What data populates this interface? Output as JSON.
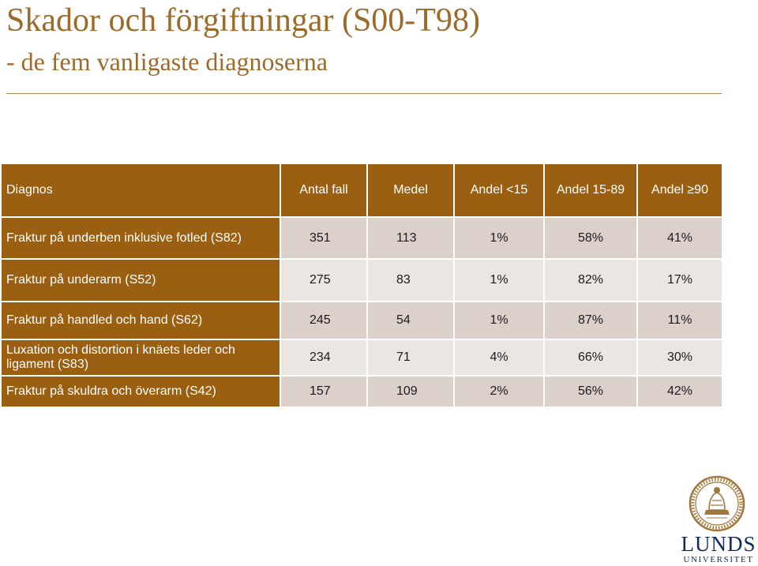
{
  "slide": {
    "title": "Skador och förgiftningar (S00-T98)",
    "subtitle": "- de fem vanligaste diagnoserna"
  },
  "table": {
    "headers": [
      "Diagnos",
      "Antal fall",
      "Medel",
      "Andel <15",
      "Andel 15-89",
      "Andel ≥90"
    ],
    "rows": [
      {
        "diagnos": "Fraktur på underben inklusive fotled (S82)",
        "antal": "351",
        "medel": "113",
        "andel_lt15": "1%",
        "andel_15_89": "58%",
        "andel_ge90": "41%"
      },
      {
        "diagnos": "Fraktur på underarm (S52)",
        "antal": "275",
        "medel": "83",
        "andel_lt15": "1%",
        "andel_15_89": "82%",
        "andel_ge90": "17%"
      },
      {
        "diagnos": "Fraktur på handled och hand (S62)",
        "antal": "245",
        "medel": "54",
        "andel_lt15": "1%",
        "andel_15_89": "87%",
        "andel_ge90": "11%"
      },
      {
        "diagnos": "Luxation och distortion i knäets leder och ligament (S83)",
        "antal": "234",
        "medel": "71",
        "andel_lt15": "4%",
        "andel_15_89": "66%",
        "andel_ge90": "30%"
      },
      {
        "diagnos": "Fraktur på skuldra och överarm (S42)",
        "antal": "157",
        "medel": "109",
        "andel_lt15": "2%",
        "andel_15_89": "56%",
        "andel_ge90": "42%"
      }
    ]
  },
  "logo": {
    "name": "LUNDS",
    "sub": "UNIVERSITET"
  },
  "colors": {
    "accent": "#9a5f10",
    "title": "#9c6a2a",
    "row_dark": "#dcd0cb",
    "row_light": "#ece6e3",
    "logo_blue": "#0d2a5c"
  }
}
